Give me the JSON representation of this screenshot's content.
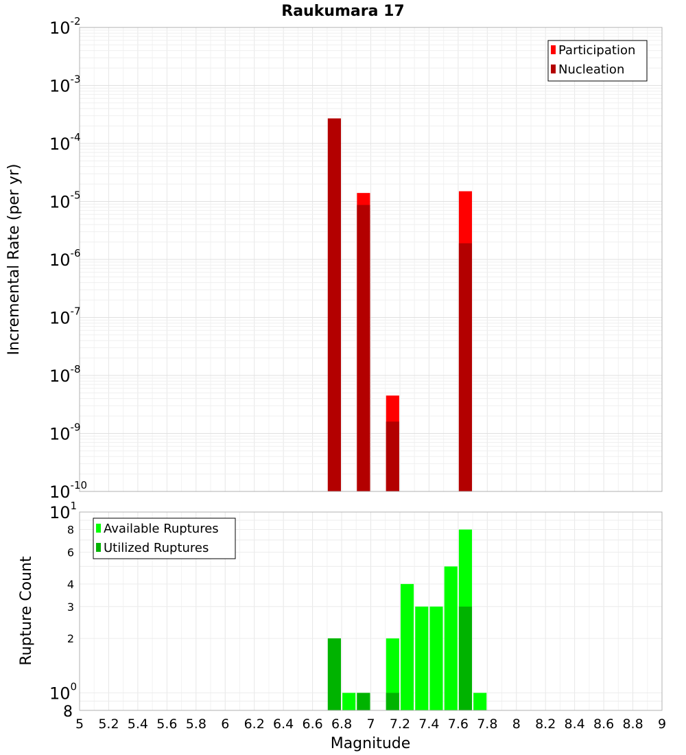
{
  "chart_data": [
    {
      "type": "bar",
      "title": "Raukumara 17",
      "xlabel": "",
      "ylabel": "Incremental Rate (per yr)",
      "yscale": "log",
      "xlim": [
        5,
        9
      ],
      "ylim": [
        1e-10,
        0.01
      ],
      "y_ticks": [
        {
          "base": "10",
          "exp": "-2"
        },
        {
          "base": "10",
          "exp": "-3"
        },
        {
          "base": "10",
          "exp": "-4"
        },
        {
          "base": "10",
          "exp": "-5"
        },
        {
          "base": "10",
          "exp": "-6"
        },
        {
          "base": "10",
          "exp": "-7"
        },
        {
          "base": "10",
          "exp": "-8"
        },
        {
          "base": "10",
          "exp": "-9"
        },
        {
          "base": "10",
          "exp": "-10"
        }
      ],
      "grid": true,
      "legend_position": "top-right",
      "series": [
        {
          "name": "Participation",
          "color": "#ff0000",
          "x": [
            6.75,
            6.95,
            7.15,
            7.65
          ],
          "values": [
            0.00027,
            1.4e-05,
            4.5e-09,
            1.5e-05
          ]
        },
        {
          "name": "Nucleation",
          "color": "#b30000",
          "x": [
            6.75,
            6.95,
            7.15,
            7.65
          ],
          "values": [
            0.00027,
            8.7e-06,
            1.6e-09,
            1.9e-06
          ]
        }
      ]
    },
    {
      "type": "bar",
      "title": "",
      "xlabel": "Magnitude",
      "ylabel": "Rupture Count",
      "yscale": "log",
      "xlim": [
        5,
        9
      ],
      "ylim": [
        0.8,
        10
      ],
      "x_ticks": [
        "5",
        "5.2",
        "5.4",
        "5.6",
        "5.8",
        "6",
        "6.2",
        "6.4",
        "6.6",
        "6.8",
        "7",
        "7.2",
        "7.4",
        "7.6",
        "7.8",
        "8",
        "8.2",
        "8.4",
        "8.6",
        "8.8",
        "9"
      ],
      "y_ticks": [
        {
          "value": 10,
          "base": "10",
          "exp": "1"
        },
        {
          "value": 8,
          "base": "8",
          "exp": ""
        },
        {
          "value": 6,
          "base": "6",
          "exp": ""
        },
        {
          "value": 4,
          "base": "4",
          "exp": ""
        },
        {
          "value": 3,
          "base": "3",
          "exp": ""
        },
        {
          "value": 2,
          "base": "2",
          "exp": ""
        },
        {
          "value": 1,
          "base": "10",
          "exp": "0"
        },
        {
          "value": 0.8,
          "base": "8",
          "exp": ""
        }
      ],
      "grid": true,
      "legend_position": "top-left",
      "series": [
        {
          "name": "Available Ruptures",
          "color": "#00ff00",
          "x": [
            6.75,
            6.85,
            6.95,
            7.15,
            7.25,
            7.35,
            7.45,
            7.55,
            7.65,
            7.75
          ],
          "values": [
            2,
            1,
            1,
            2,
            4,
            3,
            3,
            5,
            8,
            1
          ]
        },
        {
          "name": "Utilized Ruptures",
          "color": "#00b300",
          "x": [
            6.75,
            6.95,
            7.15,
            7.65
          ],
          "values": [
            2,
            1,
            1,
            3
          ]
        }
      ]
    }
  ]
}
